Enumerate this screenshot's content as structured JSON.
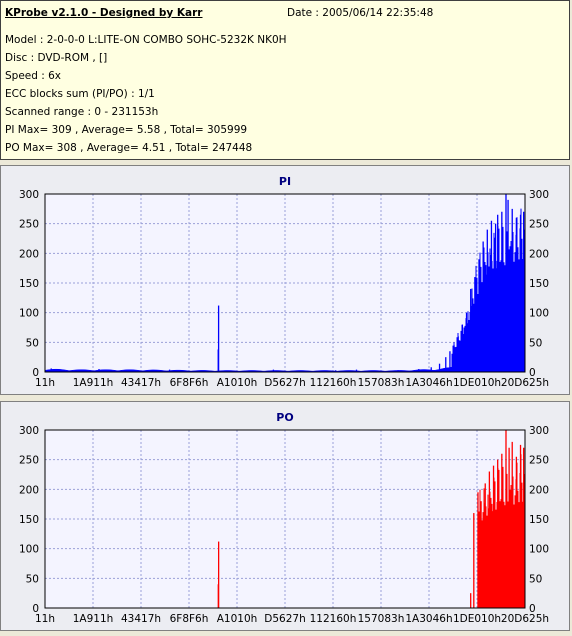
{
  "header": {
    "title": "KProbe v2.1.0 - Designed by Karr",
    "date": "Date : 2005/06/14 22:35:48",
    "model": "Model : 2-0-0-0 L:LITE-ON COMBO SOHC-5232K NK0H",
    "disc": "Disc : DVD-ROM ,  []",
    "speed": "Speed : 6x",
    "ecc": "ECC blocks sum (PI/PO) : 1/1",
    "scanned": "Scanned range : 0 - 231153h",
    "pi_stats": "PI Max= 309 , Average= 5.58 , Total= 305999",
    "po_stats": "PO Max= 308 , Average= 4.51 , Total= 247448"
  },
  "colors": {
    "pi": "#0000ff",
    "po": "#ff0000",
    "title": "#000080",
    "grid": "#9aa0d8"
  },
  "chart_data": [
    {
      "type": "bar",
      "title": "PI",
      "ylim": [
        0,
        300
      ],
      "y_ticks": [
        "0",
        "50",
        "100",
        "150",
        "200",
        "250",
        "300"
      ],
      "xlim": [
        0,
        231153
      ],
      "x_ticks": [
        "11h",
        "1A911h",
        "43417h",
        "6F8F6h",
        "A1010h",
        "D5627h",
        "112160h",
        "157083h",
        "1A3046h",
        "1DE010h",
        "20D625h"
      ],
      "baseline": [
        [
          0,
          4
        ],
        [
          15000,
          3
        ],
        [
          40000,
          3
        ],
        [
          80000,
          2
        ],
        [
          120000,
          2
        ],
        [
          170000,
          2
        ],
        [
          190000,
          4
        ],
        [
          195000,
          6
        ],
        [
          198000,
          10
        ]
      ],
      "spikes": [
        [
          3000,
          6
        ],
        [
          26000,
          5
        ],
        [
          60000,
          4
        ],
        [
          83420,
          38
        ],
        [
          83600,
          112
        ],
        [
          110000,
          4
        ],
        [
          140000,
          3
        ],
        [
          150000,
          4
        ],
        [
          170000,
          3
        ],
        [
          180000,
          5
        ],
        [
          186000,
          8
        ],
        [
          190000,
          14
        ],
        [
          193000,
          25
        ],
        [
          195000,
          35
        ],
        [
          197000,
          45
        ],
        [
          199000,
          60
        ],
        [
          201000,
          80
        ],
        [
          203000,
          100
        ],
        [
          205000,
          140
        ],
        [
          207000,
          160
        ],
        [
          209000,
          190
        ],
        [
          211000,
          220
        ],
        [
          213000,
          240
        ],
        [
          215000,
          255
        ],
        [
          217000,
          250
        ],
        [
          218000,
          265
        ],
        [
          220000,
          270
        ],
        [
          222000,
          300
        ],
        [
          223000,
          290
        ],
        [
          225000,
          275
        ],
        [
          227000,
          260
        ],
        [
          229000,
          265
        ],
        [
          230500,
          270
        ]
      ],
      "fill_from": 196000,
      "fill_levels": [
        [
          196000,
          40
        ],
        [
          200000,
          70
        ],
        [
          204000,
          110
        ],
        [
          208000,
          170
        ],
        [
          212000,
          210
        ],
        [
          216000,
          230
        ],
        [
          220000,
          235
        ],
        [
          224000,
          245
        ],
        [
          228000,
          250
        ],
        [
          231153,
          255
        ]
      ]
    },
    {
      "type": "bar",
      "title": "PO",
      "ylim": [
        0,
        300
      ],
      "y_ticks": [
        "0",
        "50",
        "100",
        "150",
        "200",
        "250",
        "300"
      ],
      "xlim": [
        0,
        231153
      ],
      "x_ticks": [
        "11h",
        "1A911h",
        "43417h",
        "6F8F6h",
        "A1010h",
        "D5627h",
        "112160h",
        "157083h",
        "1A3046h",
        "1DE010h",
        "20D625h"
      ],
      "baseline": [],
      "spikes": [
        [
          83450,
          40
        ],
        [
          83620,
          112
        ],
        [
          205000,
          25
        ],
        [
          206500,
          160
        ],
        [
          208500,
          195
        ],
        [
          210000,
          180
        ],
        [
          212000,
          210
        ],
        [
          214000,
          230
        ],
        [
          216000,
          240
        ],
        [
          218000,
          250
        ],
        [
          220000,
          260
        ],
        [
          222000,
          305
        ],
        [
          223500,
          270
        ],
        [
          225000,
          280
        ],
        [
          227000,
          255
        ],
        [
          229000,
          275
        ],
        [
          230500,
          270
        ]
      ],
      "fill_from": 209000,
      "fill_levels": [
        [
          209000,
          180
        ],
        [
          212000,
          200
        ],
        [
          216000,
          215
        ],
        [
          220000,
          230
        ],
        [
          224000,
          230
        ],
        [
          228000,
          235
        ],
        [
          231153,
          240
        ]
      ]
    }
  ]
}
